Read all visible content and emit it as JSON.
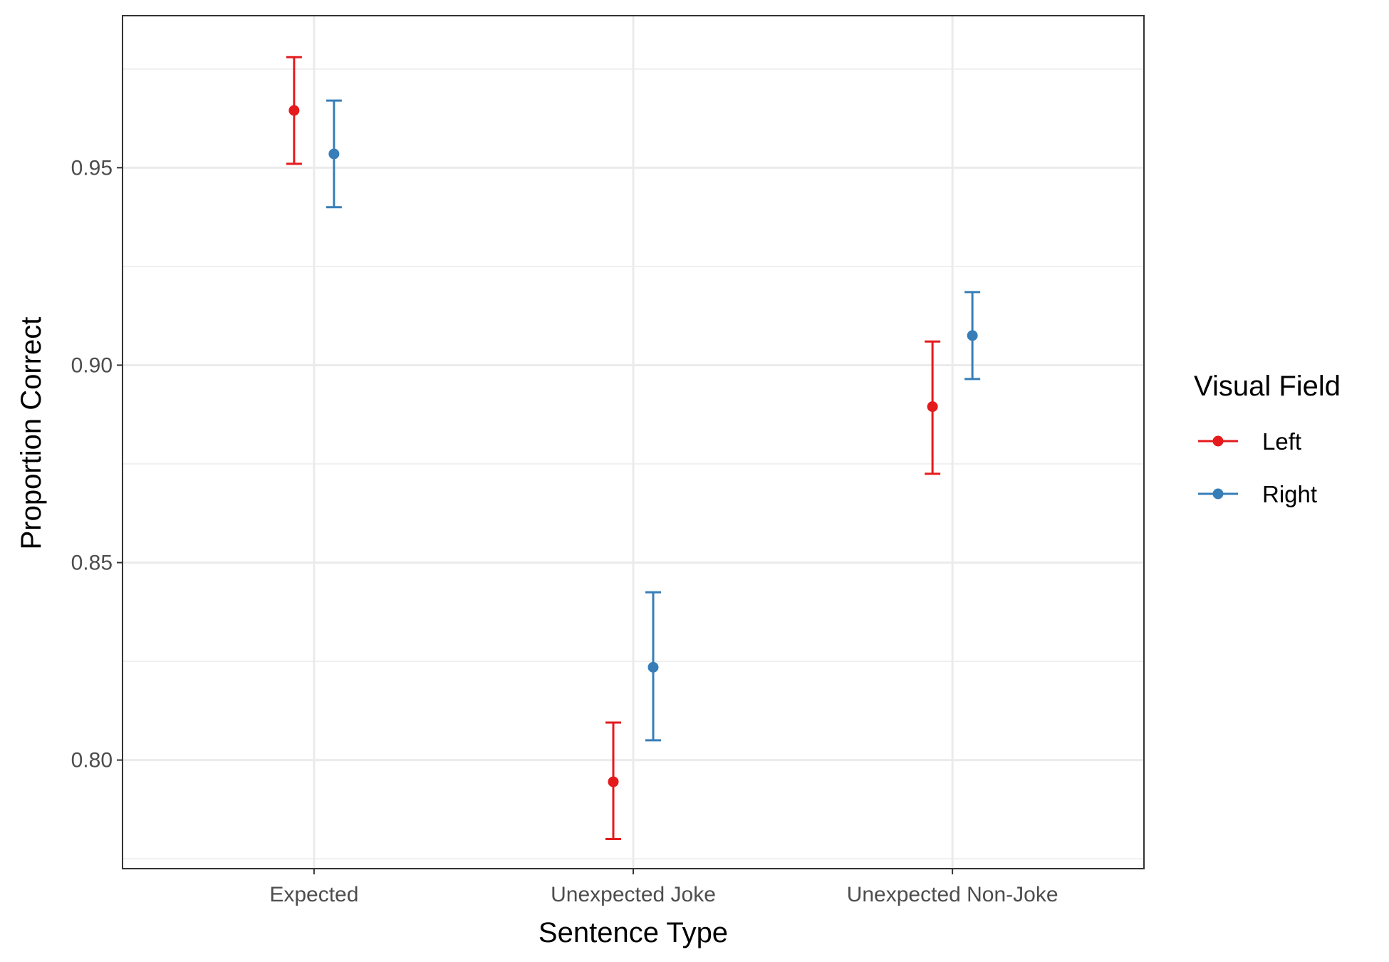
{
  "chart_data": {
    "type": "scatter",
    "subtype": "point-errorbar",
    "title": "",
    "xlabel": "Sentence Type",
    "ylabel": "Proportion Correct",
    "categories": [
      "Expected",
      "Unexpected Joke",
      "Unexpected Non-Joke"
    ],
    "ylim": [
      0.7725,
      0.9885
    ],
    "yticks": [
      0.8,
      0.85,
      0.9,
      0.95
    ],
    "ytick_labels": [
      "0.80",
      "0.85",
      "0.90",
      "0.95"
    ],
    "grid": true,
    "legend": {
      "title": "Visual Field",
      "position": "right"
    },
    "series": [
      {
        "name": "Left",
        "color": "#E41A1C",
        "values": [
          0.9645,
          0.7945,
          0.8895
        ],
        "lower": [
          0.951,
          0.78,
          0.8725
        ],
        "upper": [
          0.978,
          0.8095,
          0.906
        ]
      },
      {
        "name": "Right",
        "color": "#377EB8",
        "values": [
          0.9535,
          0.8235,
          0.9075
        ],
        "lower": [
          0.94,
          0.805,
          0.8965
        ],
        "upper": [
          0.967,
          0.8425,
          0.9185
        ]
      }
    ]
  }
}
